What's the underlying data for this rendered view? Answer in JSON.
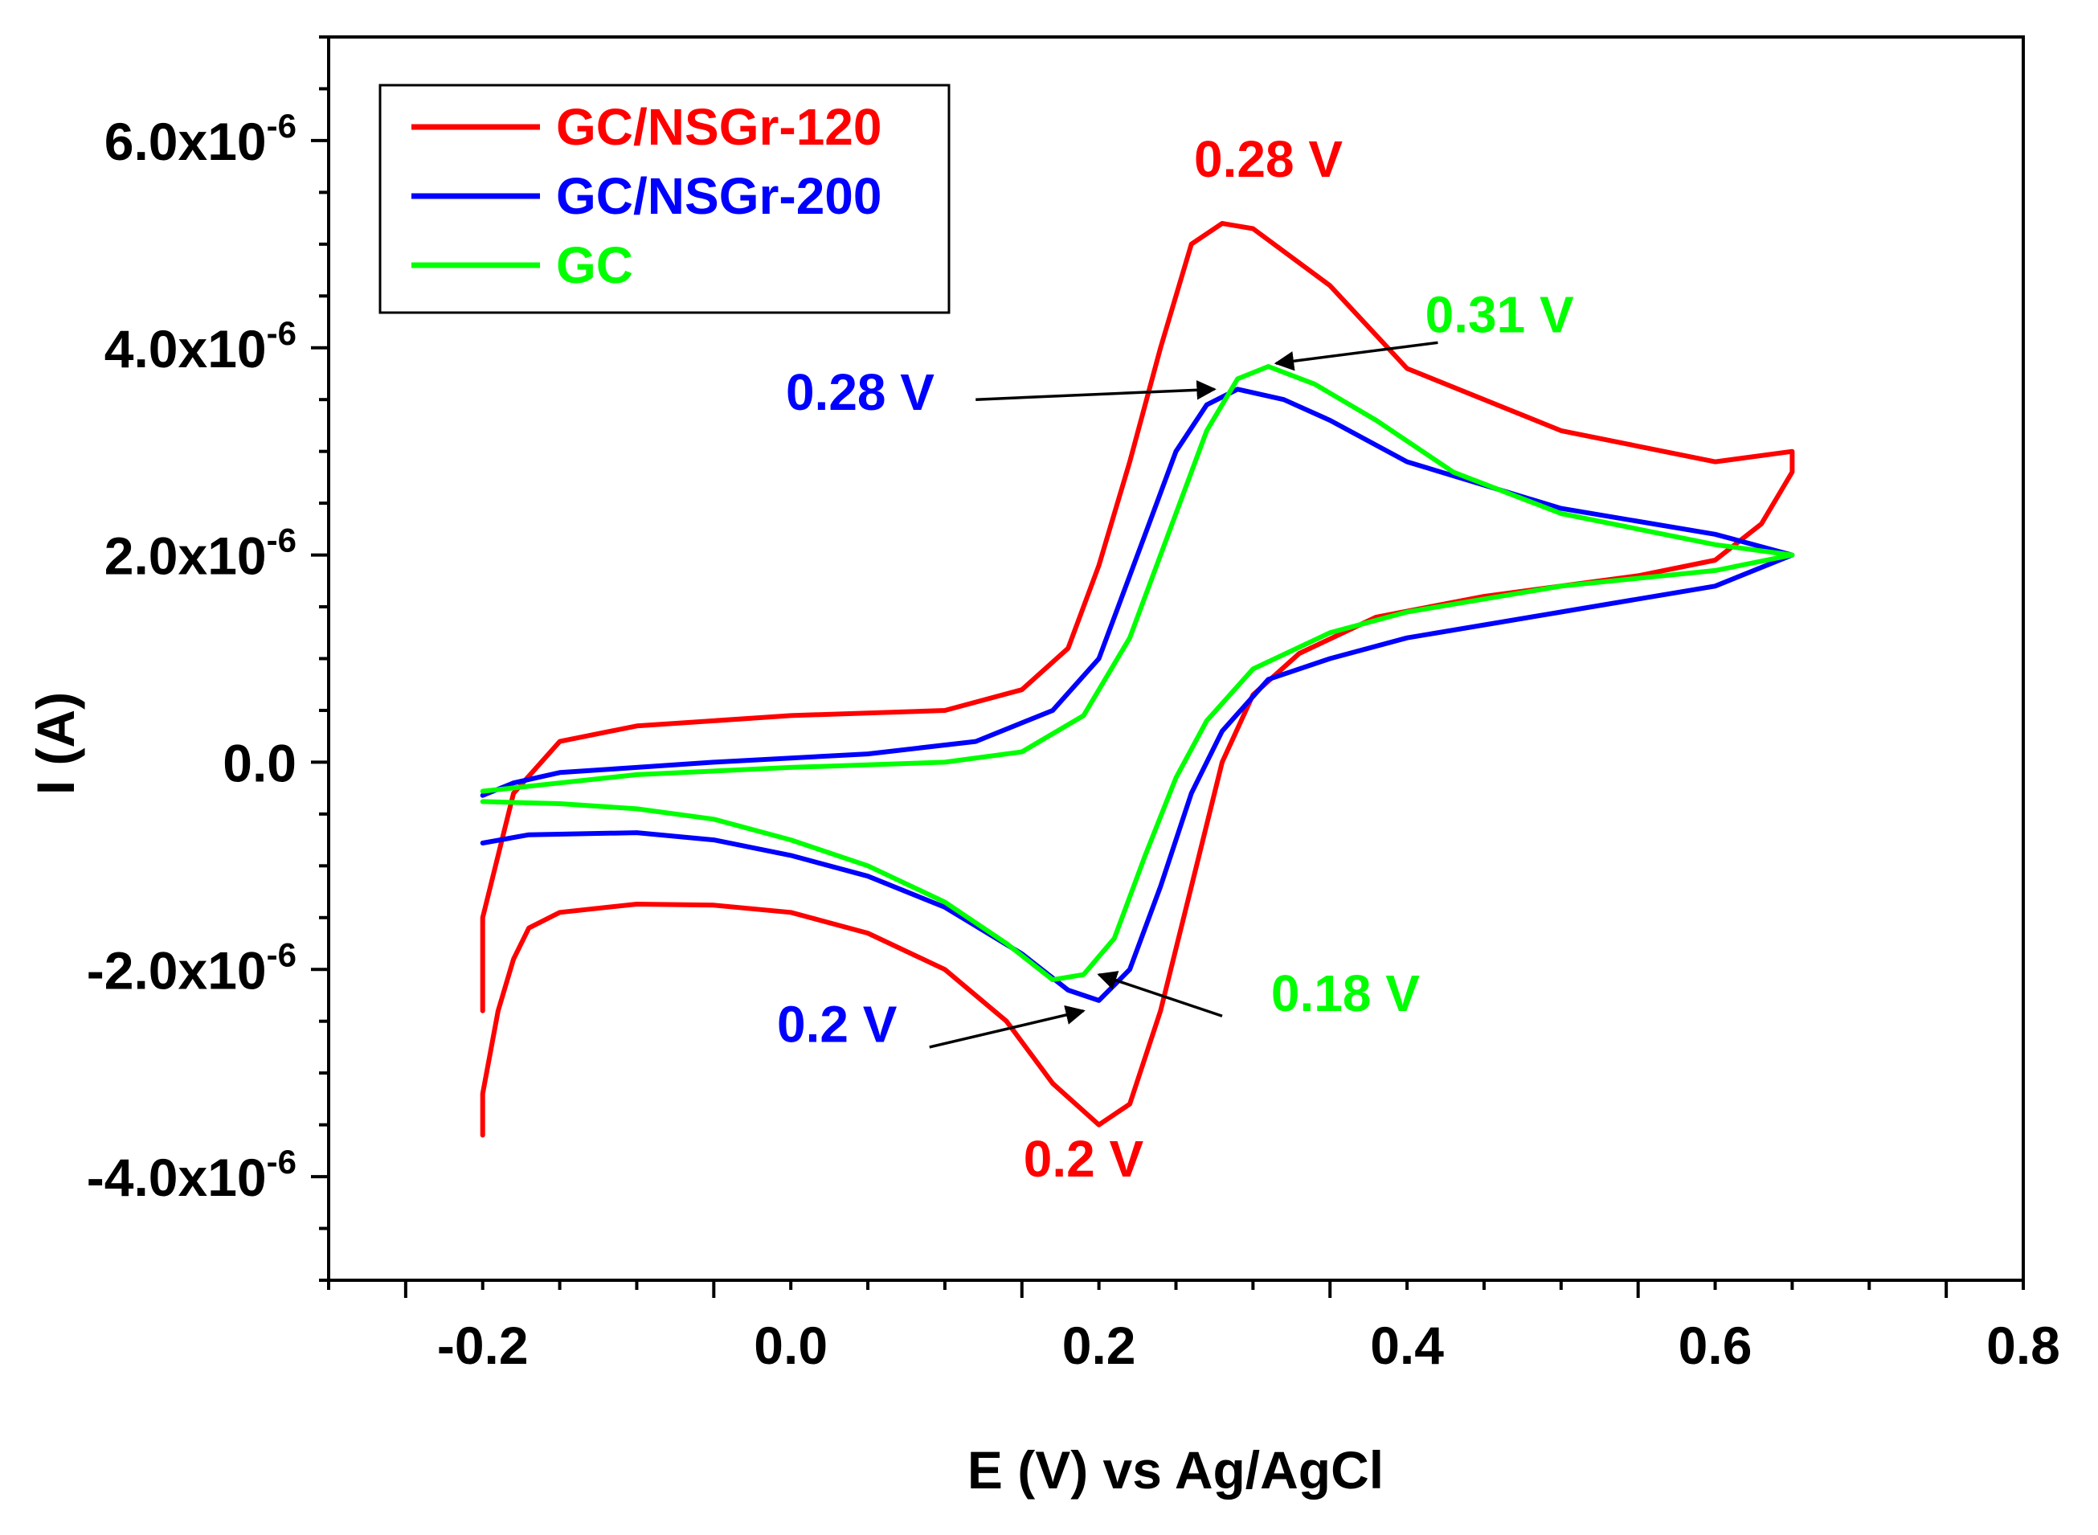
{
  "chart_data": {
    "type": "line",
    "title": "",
    "xlabel": "E (V) vs Ag/AgCl",
    "ylabel": "I (A)",
    "xlim": [
      -0.3,
      0.8
    ],
    "ylim": [
      -5e-06,
      7e-06
    ],
    "grid": false,
    "legend_position": "top-left",
    "x_ticks": [
      {
        "value": -0.2,
        "label": "-0.2"
      },
      {
        "value": 0.0,
        "label": "0.0"
      },
      {
        "value": 0.2,
        "label": "0.2"
      },
      {
        "value": 0.4,
        "label": "0.4"
      },
      {
        "value": 0.6,
        "label": "0.6"
      },
      {
        "value": 0.8,
        "label": "0.8"
      }
    ],
    "y_ticks": [
      {
        "value": -4e-06,
        "mantissa": "-4.0x10",
        "exponent": "-6"
      },
      {
        "value": -2e-06,
        "mantissa": "-2.0x10",
        "exponent": "-6"
      },
      {
        "value": 0,
        "mantissa": "0.0",
        "exponent": ""
      },
      {
        "value": 2e-06,
        "mantissa": "2.0x10",
        "exponent": "-6"
      },
      {
        "value": 4e-06,
        "mantissa": "4.0x10",
        "exponent": "-6"
      },
      {
        "value": 6e-06,
        "mantissa": "6.0x10",
        "exponent": "-6"
      }
    ],
    "series": [
      {
        "name": "GC/NSGr-120",
        "color": "#ff0000",
        "points": [
          [
            -0.2,
            -3.6e-06
          ],
          [
            -0.2,
            -3.2e-06
          ],
          [
            -0.19,
            -2.4e-06
          ],
          [
            -0.18,
            -1.9e-06
          ],
          [
            -0.17,
            -1.6e-06
          ],
          [
            -0.15,
            -1.45e-06
          ],
          [
            -0.1,
            -1.37e-06
          ],
          [
            -0.05,
            -1.38e-06
          ],
          [
            0.0,
            -1.45e-06
          ],
          [
            0.05,
            -1.65e-06
          ],
          [
            0.1,
            -2e-06
          ],
          [
            0.14,
            -2.5e-06
          ],
          [
            0.17,
            -3.1e-06
          ],
          [
            0.2,
            -3.5e-06
          ],
          [
            0.22,
            -3.3e-06
          ],
          [
            0.24,
            -2.4e-06
          ],
          [
            0.26,
            -1.2e-06
          ],
          [
            0.28,
            0.0
          ],
          [
            0.3,
            6.5e-07
          ],
          [
            0.33,
            1.05e-06
          ],
          [
            0.38,
            1.4e-06
          ],
          [
            0.45,
            1.6e-06
          ],
          [
            0.55,
            1.8e-06
          ],
          [
            0.6,
            1.95e-06
          ],
          [
            0.63,
            2.3e-06
          ],
          [
            0.65,
            2.8e-06
          ],
          [
            0.65,
            3e-06
          ],
          [
            0.6,
            2.9e-06
          ],
          [
            0.5,
            3.2e-06
          ],
          [
            0.4,
            3.8e-06
          ],
          [
            0.35,
            4.6e-06
          ],
          [
            0.3,
            5.15e-06
          ],
          [
            0.28,
            5.2e-06
          ],
          [
            0.26,
            5e-06
          ],
          [
            0.24,
            4e-06
          ],
          [
            0.22,
            2.9e-06
          ],
          [
            0.2,
            1.9e-06
          ],
          [
            0.18,
            1.1e-06
          ],
          [
            0.15,
            7e-07
          ],
          [
            0.1,
            5e-07
          ],
          [
            0.0,
            4.5e-07
          ],
          [
            -0.1,
            3.5e-07
          ],
          [
            -0.15,
            2e-07
          ],
          [
            -0.18,
            -3e-07
          ],
          [
            -0.2,
            -1.5e-06
          ],
          [
            -0.2,
            -2.4e-06
          ]
        ]
      },
      {
        "name": "GC/NSGr-200",
        "color": "#0000ff",
        "points": [
          [
            -0.2,
            -7.8e-07
          ],
          [
            -0.17,
            -7e-07
          ],
          [
            -0.1,
            -6.8e-07
          ],
          [
            -0.05,
            -7.5e-07
          ],
          [
            0.0,
            -9e-07
          ],
          [
            0.05,
            -1.1e-06
          ],
          [
            0.1,
            -1.4e-06
          ],
          [
            0.15,
            -1.85e-06
          ],
          [
            0.18,
            -2.2e-06
          ],
          [
            0.2,
            -2.3e-06
          ],
          [
            0.22,
            -2e-06
          ],
          [
            0.24,
            -1.2e-06
          ],
          [
            0.26,
            -3e-07
          ],
          [
            0.28,
            3e-07
          ],
          [
            0.31,
            8e-07
          ],
          [
            0.35,
            1e-06
          ],
          [
            0.4,
            1.2e-06
          ],
          [
            0.5,
            1.45e-06
          ],
          [
            0.6,
            1.7e-06
          ],
          [
            0.65,
            2e-06
          ],
          [
            0.6,
            2.2e-06
          ],
          [
            0.5,
            2.45e-06
          ],
          [
            0.4,
            2.9e-06
          ],
          [
            0.35,
            3.3e-06
          ],
          [
            0.32,
            3.5e-06
          ],
          [
            0.29,
            3.6e-06
          ],
          [
            0.27,
            3.45e-06
          ],
          [
            0.25,
            3e-06
          ],
          [
            0.23,
            2.2e-06
          ],
          [
            0.2,
            1e-06
          ],
          [
            0.17,
            5e-07
          ],
          [
            0.12,
            2e-07
          ],
          [
            0.05,
            8e-08
          ],
          [
            -0.05,
            0.0
          ],
          [
            -0.1,
            -5e-08
          ],
          [
            -0.15,
            -1e-07
          ],
          [
            -0.18,
            -2e-07
          ],
          [
            -0.2,
            -3.2e-07
          ]
        ]
      },
      {
        "name": "GC",
        "color": "#00ff00",
        "points": [
          [
            -0.2,
            -3.8e-07
          ],
          [
            -0.15,
            -4e-07
          ],
          [
            -0.1,
            -4.5e-07
          ],
          [
            -0.05,
            -5.5e-07
          ],
          [
            0.0,
            -7.5e-07
          ],
          [
            0.05,
            -1e-06
          ],
          [
            0.1,
            -1.35e-06
          ],
          [
            0.14,
            -1.75e-06
          ],
          [
            0.17,
            -2.1e-06
          ],
          [
            0.19,
            -2.05e-06
          ],
          [
            0.21,
            -1.7e-06
          ],
          [
            0.23,
            -9e-07
          ],
          [
            0.25,
            -1.5e-07
          ],
          [
            0.27,
            4e-07
          ],
          [
            0.3,
            9e-07
          ],
          [
            0.35,
            1.25e-06
          ],
          [
            0.4,
            1.45e-06
          ],
          [
            0.5,
            1.7e-06
          ],
          [
            0.6,
            1.85e-06
          ],
          [
            0.65,
            2e-06
          ],
          [
            0.6,
            2.1e-06
          ],
          [
            0.5,
            2.4e-06
          ],
          [
            0.43,
            2.8e-06
          ],
          [
            0.38,
            3.3e-06
          ],
          [
            0.34,
            3.65e-06
          ],
          [
            0.31,
            3.82e-06
          ],
          [
            0.29,
            3.7e-06
          ],
          [
            0.27,
            3.2e-06
          ],
          [
            0.25,
            2.4e-06
          ],
          [
            0.22,
            1.2e-06
          ],
          [
            0.19,
            4.5e-07
          ],
          [
            0.15,
            1e-07
          ],
          [
            0.1,
            0.0
          ],
          [
            0.0,
            -5e-08
          ],
          [
            -0.1,
            -1.2e-07
          ],
          [
            -0.15,
            -2e-07
          ],
          [
            -0.2,
            -2.8e-07
          ]
        ]
      }
    ],
    "annotations": [
      {
        "text": "0.28 V",
        "color": "#ff0000",
        "x": 0.31,
        "y": 5.65e-06,
        "arrow": false
      },
      {
        "text": "0.31 V",
        "color": "#00ff00",
        "x": 0.46,
        "y": 4.15e-06,
        "arrow": true,
        "arrow_from": [
          0.42,
          4.05e-06
        ],
        "arrow_to": [
          0.315,
          3.85e-06
        ]
      },
      {
        "text": "0.28 V",
        "color": "#0000ff",
        "x": 0.045,
        "y": 3.4e-06,
        "arrow": true,
        "arrow_from": [
          0.12,
          3.5e-06
        ],
        "arrow_to": [
          0.275,
          3.6e-06
        ]
      },
      {
        "text": "0.18 V",
        "color": "#00ff00",
        "x": 0.36,
        "y": -2.4e-06,
        "arrow": true,
        "arrow_from": [
          0.28,
          -2.45e-06
        ],
        "arrow_to": [
          0.2,
          -2.05e-06
        ]
      },
      {
        "text": "0.2 V",
        "color": "#0000ff",
        "x": 0.03,
        "y": -2.7e-06,
        "arrow": true,
        "arrow_from": [
          0.09,
          -2.75e-06
        ],
        "arrow_to": [
          0.19,
          -2.4e-06
        ]
      },
      {
        "text": "0.2 V",
        "color": "#ff0000",
        "x": 0.19,
        "y": -4e-06,
        "arrow": false
      }
    ]
  }
}
